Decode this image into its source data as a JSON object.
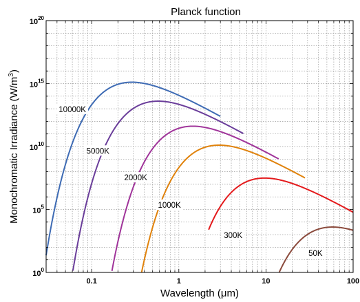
{
  "chart_data": {
    "type": "line",
    "title": "Planck function",
    "xlabel": "Wavelength (μm)",
    "ylabel": "Monochromatic Irradiance (W/m",
    "ylabel_superscript": "3",
    "ylabel_close": ")",
    "x_scale": "log",
    "y_scale": "log",
    "xlim": [
      0.03,
      100
    ],
    "ylim": [
      1,
      1e+20
    ],
    "grid": true,
    "grid_style": "dotted",
    "legend": "none",
    "x_ticks": [
      {
        "value": 0.1,
        "label": "0.1"
      },
      {
        "value": 1,
        "label": "1"
      },
      {
        "value": 10,
        "label": "10"
      },
      {
        "value": 100,
        "label": "100"
      }
    ],
    "y_ticks": [
      {
        "value": 1,
        "base": "10",
        "exp": "0"
      },
      {
        "value": 100000.0,
        "base": "10",
        "exp": "5"
      },
      {
        "value": 10000000000.0,
        "base": "10",
        "exp": "10"
      },
      {
        "value": 1000000000000000.0,
        "base": "10",
        "exp": "15"
      },
      {
        "value": 1e+20,
        "base": "10",
        "exp": "20"
      }
    ],
    "series": [
      {
        "name": "10000K",
        "temperature_K": 10000,
        "color": "#3e6bb4",
        "x_range": [
          0.03,
          3
        ]
      },
      {
        "name": "5000K",
        "temperature_K": 5000,
        "color": "#6a3d9a",
        "x_range": [
          0.055,
          5.5
        ]
      },
      {
        "name": "2000K",
        "temperature_K": 2000,
        "color": "#a0349a",
        "x_range": [
          0.13,
          14
        ]
      },
      {
        "name": "1000K",
        "temperature_K": 1000,
        "color": "#e0820b",
        "x_range": [
          0.37,
          28
        ]
      },
      {
        "name": "300K",
        "temperature_K": 300,
        "color": "#e41a1c",
        "x_range": [
          2.2,
          100
        ]
      },
      {
        "name": "50K",
        "temperature_K": 50,
        "color": "#8b4a3c",
        "x_range": [
          14,
          100
        ]
      }
    ],
    "annotations": [
      {
        "text": "10000K",
        "x": 0.06,
        "y": 8000000000000.0
      },
      {
        "text": "5000K",
        "x": 0.118,
        "y": 4000000000.0
      },
      {
        "text": "2000K",
        "x": 0.32,
        "y": 30000000.0
      },
      {
        "text": "1000K",
        "x": 0.78,
        "y": 200000.0
      },
      {
        "text": "300K",
        "x": 4.2,
        "y": 800.0
      },
      {
        "text": "50K",
        "x": 37,
        "y": 30
      }
    ]
  }
}
